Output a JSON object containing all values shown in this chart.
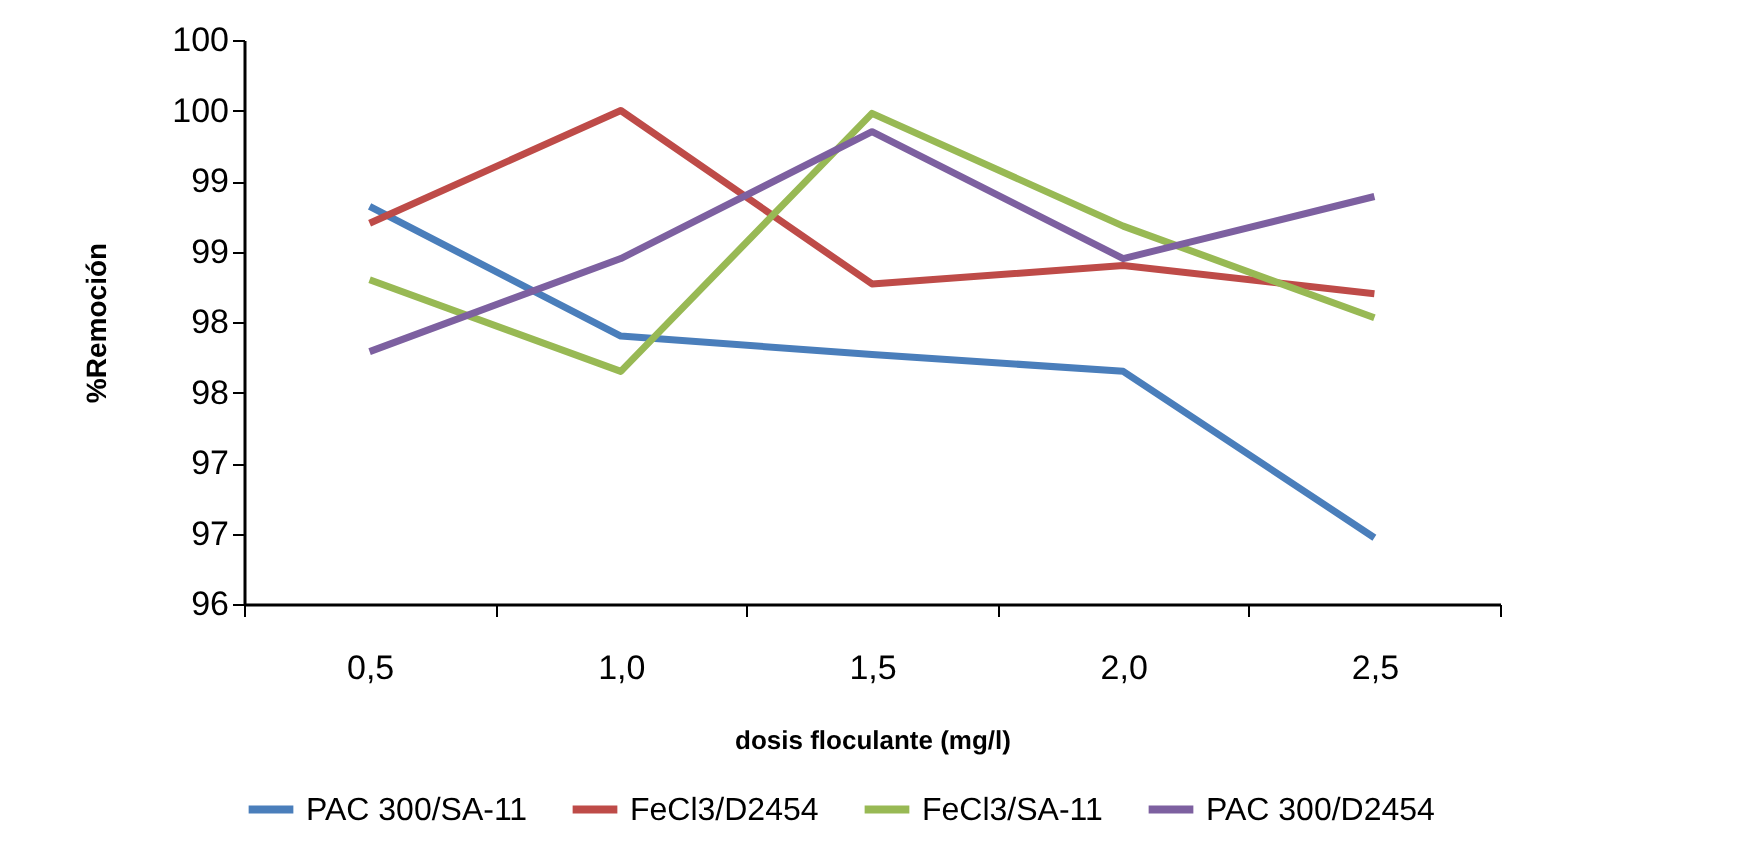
{
  "chart_data": {
    "type": "line",
    "xlabel": "dosis floculante (mg/l)",
    "ylabel": "%Remoción",
    "categories": [
      "0,5",
      "1,0",
      "1,5",
      "2,0",
      "2,5"
    ],
    "series": [
      {
        "name": "PAC 300/SA-11",
        "color": "#4a7ebb",
        "values": [
          98.82,
          97.9,
          97.77,
          97.65,
          96.47
        ]
      },
      {
        "name": "FeCl3/D2454",
        "color": "#be4b48",
        "values": [
          98.7,
          99.5,
          98.27,
          98.4,
          98.2
        ]
      },
      {
        "name": "FeCl3/SA-11",
        "color": "#98b954",
        "values": [
          98.3,
          97.65,
          99.48,
          98.68,
          98.03
        ]
      },
      {
        "name": "PAC 300/D2454",
        "color": "#7d60a0",
        "values": [
          97.79,
          98.45,
          99.35,
          98.45,
          98.89
        ]
      }
    ],
    "ylim": [
      96,
      100
    ],
    "yticks": [
      {
        "value": 96,
        "label": "96"
      },
      {
        "value": 96.5,
        "label": "97"
      },
      {
        "value": 97,
        "label": "97"
      },
      {
        "value": 97.5,
        "label": "98"
      },
      {
        "value": 98,
        "label": "98"
      },
      {
        "value": 98.5,
        "label": "99"
      },
      {
        "value": 99,
        "label": "99"
      },
      {
        "value": 99.5,
        "label": "100"
      },
      {
        "value": 100,
        "label": "100"
      }
    ],
    "grid": false,
    "legend": "bottom",
    "marker": "none",
    "line_style": "solid"
  }
}
